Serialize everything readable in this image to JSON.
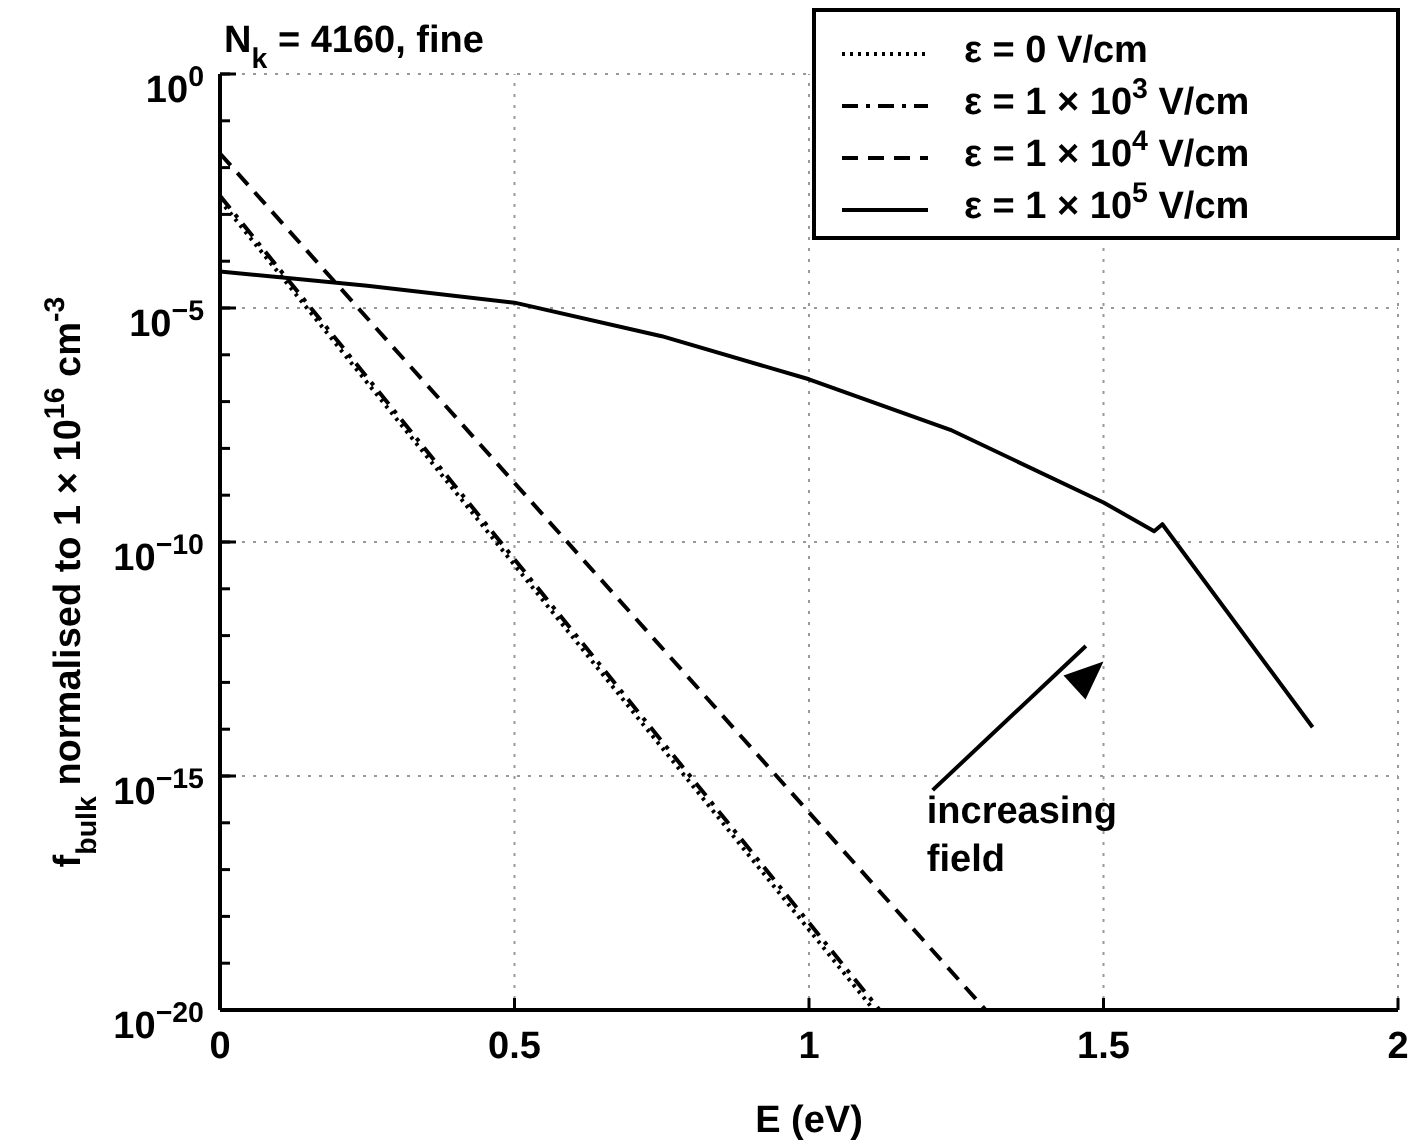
{
  "chart_data": {
    "type": "line",
    "title": "N$_{k}$ = 4160, fine",
    "xlabel": "E  (eV)",
    "ylabel": "f$_{bulk}$ normalised to 1 × 10$^{16}$ cm$^{-3}$",
    "log": "y",
    "grid": true,
    "legend": "top right",
    "marker": "none",
    "xlim": [
      0,
      2
    ],
    "xticks": [
      0,
      0.5,
      1,
      1.5,
      2
    ],
    "ylim": [
      1e-20,
      1
    ],
    "yticks": [
      {
        "value": 1e-20,
        "label": "10$^{−20}$"
      },
      {
        "value": 1e-15,
        "label": "10$^{−15}$"
      },
      {
        "value": 1e-10,
        "label": "10$^{−10}$"
      },
      {
        "value": 1e-05,
        "label": "10$^{−5}$"
      },
      {
        "value": 1,
        "label": "10$^{0}$"
      }
    ],
    "series": [
      {
        "name": "ε = 0 V/cm",
        "color": "#000000",
        "line_style": "dotted",
        "x": [
          0,
          1.11
        ],
        "values": [
          0.002,
          1e-20
        ]
      },
      {
        "name": "ε = 1 × 10$^{3}$ V/cm",
        "color": "#000000",
        "line_style": "dashdot",
        "x": [
          0,
          1.12
        ],
        "values": [
          0.0025,
          1e-20
        ]
      },
      {
        "name": "ε = 1 × 10$^{4}$ V/cm",
        "color": "#000000",
        "line_style": "dashed",
        "x": [
          0,
          1.3
        ],
        "values": [
          0.02,
          1e-20
        ]
      },
      {
        "name": "ε = 1 × 10$^{5}$ V/cm",
        "color": "#000000",
        "line_style": "solid",
        "x": [
          0,
          0.25,
          0.5,
          0.75,
          1.0,
          1.24,
          1.5,
          1.586,
          1.6,
          1.855
        ],
        "values": [
          6e-05,
          3e-05,
          1.3e-05,
          2.5e-06,
          3e-07,
          2.5e-08,
          7e-10,
          1.7e-10,
          2.4e-10,
          1.1e-14
        ]
      }
    ],
    "annotations": [
      "increasing field"
    ]
  }
}
